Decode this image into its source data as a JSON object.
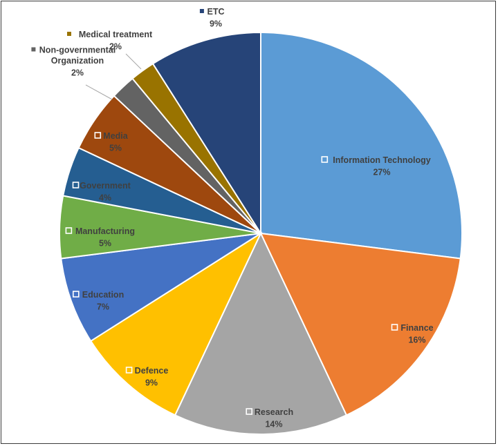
{
  "chart_data": {
    "type": "pie",
    "title": "",
    "slices": [
      {
        "label": "Information Technology",
        "value": 27,
        "pct_label": "27%",
        "color": "#5b9bd5"
      },
      {
        "label": "Finance",
        "value": 16,
        "pct_label": "16%",
        "color": "#ed7d31"
      },
      {
        "label": "Research",
        "value": 14,
        "pct_label": "14%",
        "color": "#a5a5a5"
      },
      {
        "label": "Defence",
        "value": 9,
        "pct_label": "9%",
        "color": "#ffc000"
      },
      {
        "label": "Education",
        "value": 7,
        "pct_label": "7%",
        "color": "#4472c4"
      },
      {
        "label": "Manufacturing",
        "value": 5,
        "pct_label": "5%",
        "color": "#70ad47"
      },
      {
        "label": "Government",
        "value": 4,
        "pct_label": "4%",
        "color": "#255e91"
      },
      {
        "label": "Media",
        "value": 5,
        "pct_label": "5%",
        "color": "#9e480e"
      },
      {
        "label": "Non-governmental Organization",
        "value": 2,
        "pct_label": "2%",
        "color": "#636363"
      },
      {
        "label": "Medical treatment",
        "value": 2,
        "pct_label": "2%",
        "color": "#997300"
      },
      {
        "label": "ETC",
        "value": 9,
        "pct_label": "9%",
        "color": "#264478"
      }
    ]
  }
}
